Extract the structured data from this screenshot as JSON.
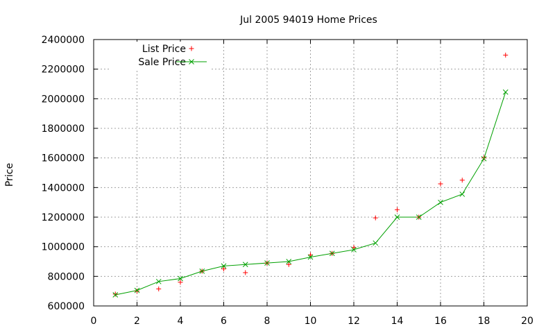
{
  "chart_data": {
    "type": "scatter",
    "title": "Jul 2005 94019 Home Prices",
    "xlabel": "",
    "ylabel": "Price",
    "xlim": [
      0,
      20
    ],
    "ylim": [
      600000,
      2400000
    ],
    "xticks": [
      0,
      2,
      4,
      6,
      8,
      10,
      12,
      14,
      16,
      18,
      20
    ],
    "yticks": [
      600000,
      800000,
      1000000,
      1200000,
      1400000,
      1600000,
      1800000,
      2000000,
      2200000,
      2400000
    ],
    "grid": true,
    "legend_position": "top-left",
    "x": [
      1,
      2,
      3,
      4,
      5,
      6,
      7,
      8,
      9,
      10,
      11,
      12,
      13,
      14,
      15,
      16,
      17,
      18,
      19
    ],
    "series": [
      {
        "name": "List Price",
        "style": "points",
        "marker": "plus",
        "color": "#ff0000",
        "values": [
          680000,
          700000,
          715000,
          760000,
          835000,
          850000,
          825000,
          890000,
          880000,
          945000,
          955000,
          995000,
          1195000,
          1250000,
          1200000,
          1425000,
          1450000,
          1600000,
          2295000
        ]
      },
      {
        "name": "Sale Price",
        "style": "linespoints",
        "marker": "x",
        "color": "#00a000",
        "values": [
          675000,
          705000,
          765000,
          785000,
          835000,
          870000,
          880000,
          890000,
          900000,
          930000,
          955000,
          980000,
          1025000,
          1200000,
          1200000,
          1300000,
          1355000,
          1595000,
          2045000
        ]
      }
    ]
  }
}
